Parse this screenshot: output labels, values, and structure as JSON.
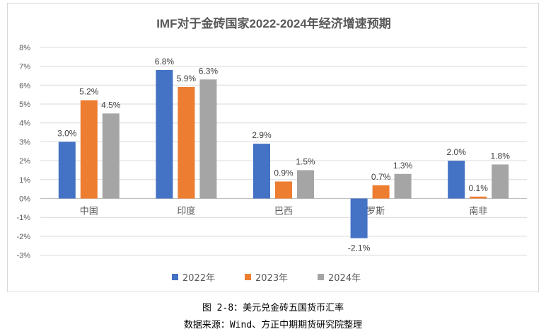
{
  "chart_data": {
    "type": "bar",
    "title": "IMF对于金砖国家2022-2024年经济增速预期",
    "categories": [
      "中国",
      "印度",
      "巴西",
      "俄罗斯",
      "南非"
    ],
    "series": [
      {
        "name": "2022年",
        "color": "#4472c4",
        "values": [
          3.0,
          6.8,
          2.9,
          -2.1,
          2.0
        ],
        "labels": [
          "3.0%",
          "6.8%",
          "2.9%",
          "-2.1%",
          "2.0%"
        ]
      },
      {
        "name": "2023年",
        "color": "#ed7d31",
        "values": [
          5.2,
          5.9,
          0.9,
          0.7,
          0.1
        ],
        "labels": [
          "5.2%",
          "5.9%",
          "0.9%",
          "0.7%",
          "0.1%"
        ]
      },
      {
        "name": "2024年",
        "color": "#a5a5a5",
        "values": [
          4.5,
          6.3,
          1.5,
          1.3,
          1.8
        ],
        "labels": [
          "4.5%",
          "6.3%",
          "1.5%",
          "1.3%",
          "1.8%"
        ]
      }
    ],
    "yticks": [
      "8%",
      "7%",
      "6%",
      "5%",
      "4%",
      "3%",
      "2%",
      "1%",
      "0%",
      "-1%",
      "-2%",
      "-3%"
    ],
    "ylim": [
      -3,
      8
    ],
    "unit": "%",
    "grid": true,
    "legend_position": "bottom"
  },
  "captions": {
    "figure": "图 2-8：美元兑金砖五国货币汇率",
    "source": "数据来源：Wind、方正中期期货研究院整理"
  }
}
